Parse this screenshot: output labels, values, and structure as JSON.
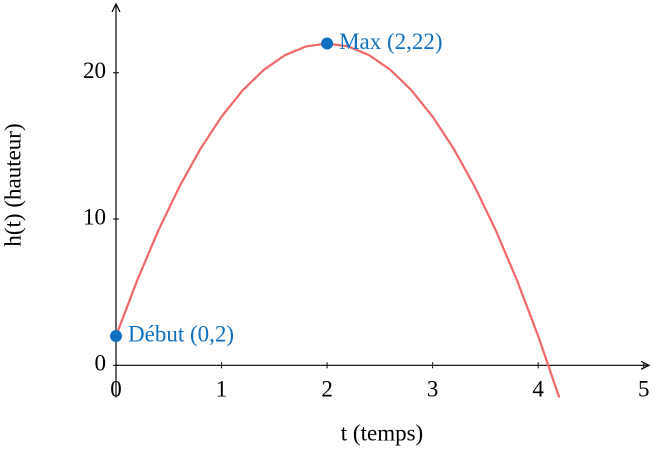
{
  "chart_data": {
    "type": "line",
    "x_label": "t (temps)",
    "y_label": "h(t) (hauteur)",
    "x": [
      0,
      0.2,
      0.4,
      0.6,
      0.8,
      1.0,
      1.2,
      1.4,
      1.6,
      1.8,
      2.0,
      2.2,
      2.4,
      2.6,
      2.8,
      3.0,
      3.2,
      3.4,
      3.6,
      3.8,
      4.0,
      4.2
    ],
    "series": [
      {
        "color": "#f06868",
        "values": [
          2,
          5.8,
          9.2,
          12.2,
          14.8,
          17,
          18.8,
          20.2,
          21.2,
          21.8,
          22,
          21.8,
          21.2,
          20.2,
          18.8,
          17,
          14.8,
          12.2,
          9.2,
          5.8,
          2,
          -2.2
        ]
      }
    ],
    "points": [
      {
        "x": 0,
        "y": 2,
        "label": "Début (0,2)",
        "color": "#1070c0"
      },
      {
        "x": 2,
        "y": 22,
        "label": "Max (2,22)",
        "color": "#1070c0"
      }
    ],
    "xlim": [
      0,
      5.05
    ],
    "ylim": [
      -2.2,
      24.7
    ],
    "xticks": [
      0,
      1,
      2,
      3,
      4,
      5
    ],
    "yticks": [
      0,
      10,
      20
    ]
  }
}
